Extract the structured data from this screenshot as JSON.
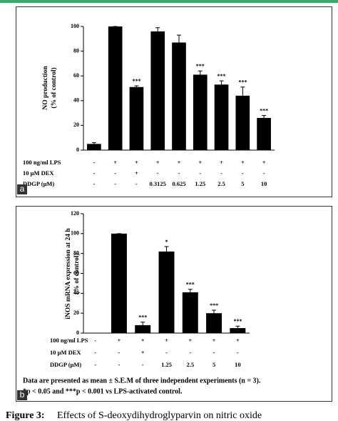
{
  "chart_data": [
    {
      "type": "bar",
      "panel_label": "a",
      "y_label": [
        "NO production",
        "(% of control)"
      ],
      "values": [
        5,
        100,
        51,
        96,
        87,
        61,
        53,
        44,
        26
      ],
      "errors": [
        1,
        0,
        1,
        3,
        6,
        3,
        3,
        7,
        2
      ],
      "annotations": [
        null,
        null,
        "***",
        null,
        null,
        "***",
        "***",
        "***",
        "***"
      ],
      "conditions": [
        {
          "label": "100 ng/ml LPS",
          "values": [
            "-",
            "+",
            "+",
            "+",
            "+",
            "+",
            "+",
            "+",
            "+"
          ]
        },
        {
          "label": "10 μM DEX",
          "values": [
            "-",
            "-",
            "+",
            "-",
            "-",
            "-",
            "-",
            "-",
            "-"
          ]
        },
        {
          "label": "DDGP (μM)",
          "values": [
            "-",
            "-",
            "-",
            "0.3125",
            "0.625",
            "1.25",
            "2.5",
            "5",
            "10"
          ]
        }
      ],
      "color": "#000000",
      "ylim": [
        0,
        100
      ],
      "yticks": [
        0,
        20,
        40,
        60,
        80,
        100
      ]
    },
    {
      "type": "bar",
      "panel_label": "b",
      "y_label": [
        "iNOS mRNA expression at 24 h",
        "(% of control)"
      ],
      "values": [
        0,
        100,
        8,
        82,
        41,
        20,
        5
      ],
      "errors": [
        0,
        0,
        3,
        5,
        3,
        3,
        2
      ],
      "annotations": [
        null,
        null,
        "***",
        "*",
        "***",
        "***",
        "***"
      ],
      "conditions": [
        {
          "label": "100 ng/ml LPS",
          "values": [
            "-",
            "+",
            "+",
            "+",
            "+",
            "+",
            "+"
          ]
        },
        {
          "label": "10 μM DEX",
          "values": [
            "-",
            "-",
            "+",
            "-",
            "-",
            "-",
            "-"
          ]
        },
        {
          "label": "DDGP (μM)",
          "values": [
            "-",
            "-",
            "-",
            "1.25",
            "2.5",
            "5",
            "10"
          ]
        }
      ],
      "notes": [
        "Data are presented as mean ± S.E.M of three independent experiments (n = 3).",
        "*p < 0.05 and ***p < 0.001 vs LPS-activated control."
      ],
      "color": "#000000",
      "ylim": [
        0,
        120
      ],
      "yticks": [
        0,
        20,
        40,
        60,
        80,
        100,
        120
      ]
    }
  ],
  "caption": {
    "label": "Figure 3:",
    "text": "Effects of S-deoxydihydroglyparvin on nitric oxide"
  }
}
